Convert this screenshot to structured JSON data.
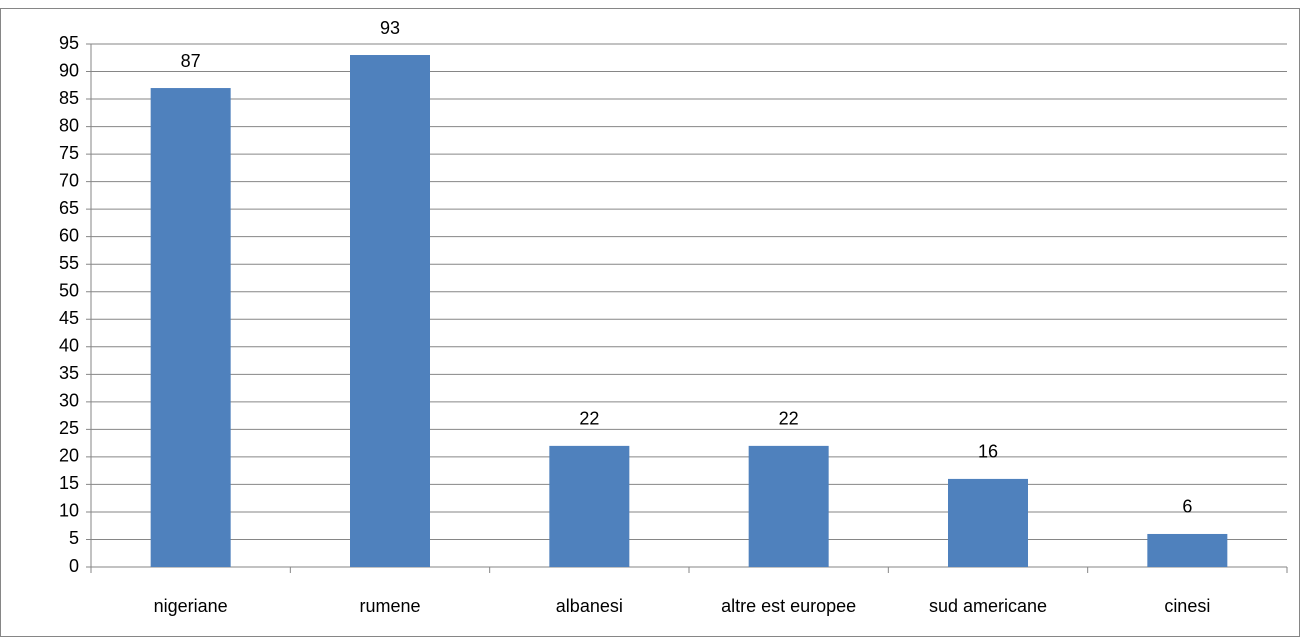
{
  "chart_data": {
    "type": "bar",
    "categories": [
      "nigeriane",
      "rumene",
      "albanesi",
      "altre est europee",
      "sud americane",
      "cinesi"
    ],
    "values": [
      87,
      93,
      22,
      22,
      16,
      6
    ],
    "color": "#4f81bd",
    "ylim": [
      0,
      95
    ],
    "yticks": [
      0,
      5,
      10,
      15,
      20,
      25,
      30,
      35,
      40,
      45,
      50,
      55,
      60,
      65,
      70,
      75,
      80,
      85,
      90,
      95
    ],
    "grid": true,
    "data_labels": true
  }
}
